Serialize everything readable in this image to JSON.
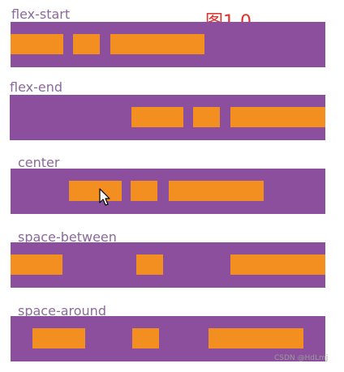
{
  "figure_label": "图1.0",
  "watermark": "CSDN @HdLmj",
  "colors": {
    "container": "#8c4f9d",
    "item": "#f38e21",
    "label": "#8a6a9a",
    "figure_label": "#e0302a"
  },
  "examples": [
    {
      "label": "flex-start",
      "item_count": 3
    },
    {
      "label": "flex-end",
      "item_count": 3
    },
    {
      "label": "center",
      "item_count": 3
    },
    {
      "label": "space-between",
      "item_count": 3
    },
    {
      "label": "space-around",
      "item_count": 3
    }
  ]
}
